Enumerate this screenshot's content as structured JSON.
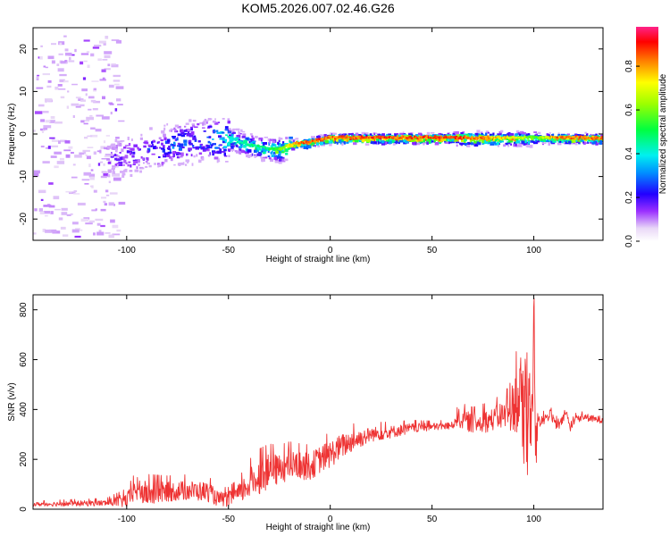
{
  "title": "KOM5.2026.007.02.46.G26",
  "chart_data": [
    {
      "type": "heatmap",
      "xlabel": "Height of straight line (km)",
      "ylabel": "Frequency (Hz)",
      "xlim": [
        -146,
        134
      ],
      "ylim": [
        -25,
        25
      ],
      "xticks": [
        "-100",
        "-50",
        "0",
        "50",
        "100"
      ],
      "xtick_values": [
        -100,
        -50,
        0,
        50,
        100
      ],
      "yticks": [
        "-20",
        "-10",
        "0",
        "10",
        "20"
      ],
      "ytick_values": [
        -20,
        -10,
        0,
        10,
        20
      ],
      "grid": false,
      "colorbar": {
        "label": "Normalized spectral amplitude",
        "range": [
          0,
          0.98
        ],
        "ticks": [
          "0.0",
          "0.2",
          "0.4",
          "0.6",
          "0.8"
        ],
        "tick_values": [
          0,
          0.2,
          0.4,
          0.6,
          0.8
        ]
      },
      "ridge": {
        "x": [
          -146,
          -120,
          -100,
          -90,
          -80,
          -70,
          -60,
          -50,
          -40,
          -30,
          -25,
          -20,
          -15,
          -10,
          -5,
          0,
          10,
          20,
          30,
          40,
          50,
          60,
          70,
          80,
          90,
          100,
          110,
          120,
          130,
          134
        ],
        "freq": [
          -6,
          -6,
          -5,
          -3.5,
          -2.5,
          -1.5,
          -1,
          -1,
          -2.5,
          -3.5,
          -3.5,
          -2.5,
          -2,
          -1.8,
          -1.2,
          -0.8,
          -0.8,
          -0.8,
          -0.8,
          -0.8,
          -0.8,
          -0.8,
          -0.9,
          -0.9,
          -0.9,
          -0.8,
          -0.8,
          -0.8,
          -0.9,
          -1.0
        ],
        "amplitude": [
          0.1,
          0.1,
          0.2,
          0.25,
          0.3,
          0.3,
          0.35,
          0.45,
          0.5,
          0.55,
          0.65,
          0.8,
          0.92,
          0.95,
          0.95,
          0.9,
          0.95,
          0.95,
          0.95,
          0.95,
          0.95,
          0.95,
          0.9,
          0.85,
          0.8,
          0.6,
          0.9,
          0.92,
          0.9,
          0.9
        ]
      }
    },
    {
      "type": "line",
      "xlabel": "Height of straight line (km)",
      "ylabel": "SNR (v/v)",
      "xlim": [
        -146,
        134
      ],
      "ylim": [
        0,
        860
      ],
      "xticks": [
        "-100",
        "-50",
        "0",
        "50",
        "100"
      ],
      "xtick_values": [
        -100,
        -50,
        0,
        50,
        100
      ],
      "yticks": [
        "0",
        "200",
        "400",
        "600",
        "800"
      ],
      "ytick_values": [
        0,
        200,
        400,
        600,
        800
      ],
      "grid": false,
      "color": "#ee3333",
      "series": [
        {
          "x": [
            -146,
            -130,
            -110,
            -100,
            -95,
            -90,
            -80,
            -70,
            -60,
            -55,
            -50,
            -45,
            -40,
            -35,
            -30,
            -25,
            -20,
            -15,
            -10,
            -5,
            0,
            5,
            10,
            20,
            30,
            40,
            50,
            60,
            62,
            65,
            70,
            75,
            80,
            85,
            88,
            90,
            92,
            94,
            95,
            96,
            97,
            98,
            99,
            100,
            101,
            102,
            103,
            104,
            105,
            108,
            110,
            112,
            115,
            116,
            118,
            120,
            125,
            130,
            134
          ],
          "y": [
            20,
            22,
            25,
            35,
            80,
            60,
            70,
            75,
            70,
            40,
            40,
            60,
            100,
            130,
            150,
            160,
            175,
            175,
            170,
            200,
            220,
            250,
            270,
            300,
            310,
            325,
            330,
            335,
            370,
            360,
            345,
            350,
            360,
            380,
            360,
            430,
            420,
            480,
            300,
            520,
            250,
            620,
            150,
            860,
            200,
            380,
            350,
            360,
            360,
            380,
            350,
            330,
            370,
            390,
            320,
            360,
            370,
            360,
            360
          ],
          "spread": [
            8,
            10,
            12,
            30,
            50,
            50,
            40,
            40,
            40,
            30,
            30,
            40,
            60,
            70,
            70,
            60,
            60,
            55,
            55,
            55,
            55,
            50,
            45,
            30,
            25,
            20,
            15,
            15,
            40,
            40,
            40,
            45,
            45,
            60,
            80,
            110,
            140,
            180,
            220,
            260,
            300,
            280,
            300,
            120,
            150,
            30,
            25,
            25,
            20,
            20,
            25,
            20,
            15,
            15,
            15,
            15,
            15,
            15,
            15
          ]
        }
      ]
    }
  ]
}
